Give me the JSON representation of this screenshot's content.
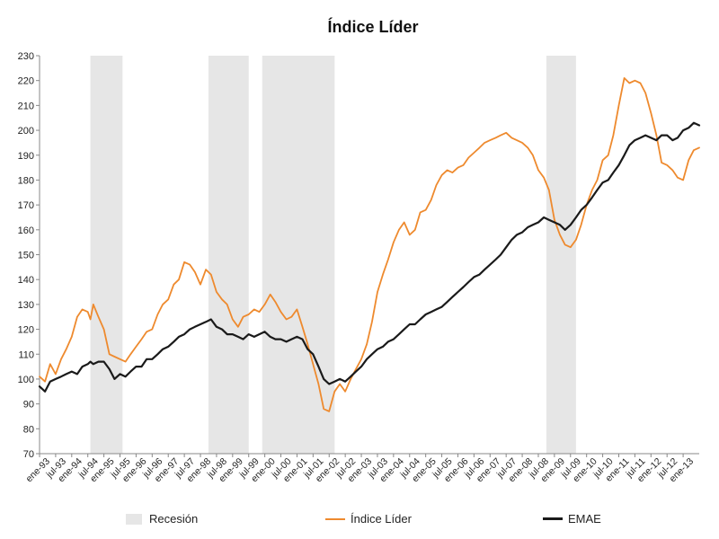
{
  "chart_data": {
    "type": "line",
    "title": "Índice Líder",
    "xlabel": "",
    "ylabel": "",
    "ylim": [
      70,
      230
    ],
    "yticks": [
      70,
      80,
      90,
      100,
      110,
      120,
      130,
      140,
      150,
      160,
      170,
      180,
      190,
      200,
      210,
      220,
      230
    ],
    "xlim": [
      1993.0,
      2013.5
    ],
    "xtick_labels": [
      "ene-93",
      "jul-93",
      "ene-94",
      "jul-94",
      "ene-95",
      "jul-95",
      "ene-96",
      "jul-96",
      "ene-97",
      "jul-97",
      "ene-98",
      "jul-98",
      "ene-99",
      "jul-99",
      "ene-00",
      "jul-00",
      "ene-01",
      "jul-01",
      "ene-02",
      "jul-02",
      "ene-03",
      "jul-03",
      "ene-04",
      "jul-04",
      "ene-05",
      "jul-05",
      "ene-06",
      "jul-06",
      "ene-07",
      "jul-07",
      "ene-08",
      "jul-08",
      "ene-09",
      "jul-09",
      "ene-10",
      "jul-10",
      "ene-11",
      "jul-11",
      "ene-12",
      "jul-12",
      "ene-13"
    ],
    "recessions": [
      {
        "start": 1994.58,
        "end": 1995.58
      },
      {
        "start": 1998.25,
        "end": 1999.5
      },
      {
        "start": 1999.92,
        "end": 2002.17
      },
      {
        "start": 2008.75,
        "end": 2009.67
      }
    ],
    "grid": false,
    "legend_position": "bottom",
    "series": [
      {
        "name": "Índice Líder",
        "color": "#ee8a2e",
        "x": [
          1993.0,
          1993.17,
          1993.33,
          1993.5,
          1993.67,
          1993.83,
          1994.0,
          1994.17,
          1994.33,
          1994.5,
          1994.58,
          1994.67,
          1994.83,
          1995.0,
          1995.17,
          1995.33,
          1995.5,
          1995.67,
          1995.83,
          1996.0,
          1996.17,
          1996.33,
          1996.5,
          1996.67,
          1996.83,
          1997.0,
          1997.17,
          1997.33,
          1997.5,
          1997.67,
          1997.83,
          1998.0,
          1998.17,
          1998.33,
          1998.5,
          1998.67,
          1998.83,
          1999.0,
          1999.17,
          1999.33,
          1999.5,
          1999.67,
          1999.83,
          2000.0,
          2000.17,
          2000.33,
          2000.5,
          2000.67,
          2000.83,
          2001.0,
          2001.17,
          2001.33,
          2001.5,
          2001.67,
          2001.83,
          2002.0,
          2002.17,
          2002.33,
          2002.5,
          2002.67,
          2002.83,
          2003.0,
          2003.17,
          2003.33,
          2003.5,
          2003.67,
          2003.83,
          2004.0,
          2004.17,
          2004.33,
          2004.5,
          2004.67,
          2004.83,
          2005.0,
          2005.17,
          2005.33,
          2005.5,
          2005.67,
          2005.83,
          2006.0,
          2006.17,
          2006.33,
          2006.5,
          2006.67,
          2006.83,
          2007.0,
          2007.17,
          2007.33,
          2007.5,
          2007.67,
          2007.83,
          2008.0,
          2008.17,
          2008.33,
          2008.5,
          2008.67,
          2008.83,
          2009.0,
          2009.17,
          2009.33,
          2009.5,
          2009.67,
          2009.83,
          2010.0,
          2010.17,
          2010.33,
          2010.5,
          2010.67,
          2010.83,
          2011.0,
          2011.17,
          2011.33,
          2011.5,
          2011.67,
          2011.83,
          2012.0,
          2012.17,
          2012.33,
          2012.5,
          2012.67,
          2012.83,
          2013.0,
          2013.17,
          2013.33,
          2013.5
        ],
        "values": [
          101,
          99,
          106,
          102,
          108,
          112,
          117,
          125,
          128,
          127,
          124,
          130,
          125,
          120,
          110,
          109,
          108,
          107,
          110,
          113,
          116,
          119,
          120,
          126,
          130,
          132,
          138,
          140,
          147,
          146,
          143,
          138,
          144,
          142,
          135,
          132,
          130,
          124,
          121,
          125,
          126,
          128,
          127,
          130,
          134,
          131,
          127,
          124,
          125,
          128,
          121,
          114,
          106,
          98,
          88,
          87,
          95,
          98,
          95,
          100,
          104,
          108,
          114,
          123,
          135,
          142,
          148,
          155,
          160,
          163,
          158,
          160,
          167,
          168,
          172,
          178,
          182,
          184,
          183,
          185,
          186,
          189,
          191,
          193,
          195,
          196,
          197,
          198,
          199,
          197,
          196,
          195,
          193,
          190,
          184,
          181,
          176,
          164,
          158,
          154,
          153,
          156,
          162,
          170,
          176,
          180,
          188,
          190,
          198,
          210,
          221,
          219,
          220,
          219,
          215,
          207,
          198,
          187,
          186,
          184,
          181,
          180,
          188,
          192,
          193
        ]
      },
      {
        "name": "EMAE",
        "color": "#1a1a1a",
        "x": [
          1993.0,
          1993.17,
          1993.33,
          1993.5,
          1993.67,
          1993.83,
          1994.0,
          1994.17,
          1994.33,
          1994.5,
          1994.58,
          1994.67,
          1994.83,
          1995.0,
          1995.17,
          1995.33,
          1995.5,
          1995.67,
          1995.83,
          1996.0,
          1996.17,
          1996.33,
          1996.5,
          1996.67,
          1996.83,
          1997.0,
          1997.17,
          1997.33,
          1997.5,
          1997.67,
          1997.83,
          1998.0,
          1998.17,
          1998.33,
          1998.5,
          1998.67,
          1998.83,
          1999.0,
          1999.17,
          1999.33,
          1999.5,
          1999.67,
          1999.83,
          2000.0,
          2000.17,
          2000.33,
          2000.5,
          2000.67,
          2000.83,
          2001.0,
          2001.17,
          2001.33,
          2001.5,
          2001.67,
          2001.83,
          2002.0,
          2002.17,
          2002.33,
          2002.5,
          2002.67,
          2002.83,
          2003.0,
          2003.17,
          2003.33,
          2003.5,
          2003.67,
          2003.83,
          2004.0,
          2004.17,
          2004.33,
          2004.5,
          2004.67,
          2004.83,
          2005.0,
          2005.17,
          2005.33,
          2005.5,
          2005.67,
          2005.83,
          2006.0,
          2006.17,
          2006.33,
          2006.5,
          2006.67,
          2006.83,
          2007.0,
          2007.17,
          2007.33,
          2007.5,
          2007.67,
          2007.83,
          2008.0,
          2008.17,
          2008.33,
          2008.5,
          2008.67,
          2008.83,
          2009.0,
          2009.17,
          2009.33,
          2009.5,
          2009.67,
          2009.83,
          2010.0,
          2010.17,
          2010.33,
          2010.5,
          2010.67,
          2010.83,
          2011.0,
          2011.17,
          2011.33,
          2011.5,
          2011.67,
          2011.83,
          2012.0,
          2012.17,
          2012.33,
          2012.5,
          2012.67,
          2012.83,
          2013.0,
          2013.17,
          2013.33,
          2013.5
        ],
        "values": [
          97,
          95,
          99,
          100,
          101,
          102,
          103,
          102,
          105,
          106,
          107,
          106,
          107,
          107,
          104,
          100,
          102,
          101,
          103,
          105,
          105,
          108,
          108,
          110,
          112,
          113,
          115,
          117,
          118,
          120,
          121,
          122,
          123,
          124,
          121,
          120,
          118,
          118,
          117,
          116,
          118,
          117,
          118,
          119,
          117,
          116,
          116,
          115,
          116,
          117,
          116,
          112,
          110,
          105,
          100,
          98,
          99,
          100,
          99,
          101,
          103,
          105,
          108,
          110,
          112,
          113,
          115,
          116,
          118,
          120,
          122,
          122,
          124,
          126,
          127,
          128,
          129,
          131,
          133,
          135,
          137,
          139,
          141,
          142,
          144,
          146,
          148,
          150,
          153,
          156,
          158,
          159,
          161,
          162,
          163,
          165,
          164,
          163,
          162,
          160,
          162,
          165,
          168,
          170,
          173,
          176,
          179,
          180,
          183,
          186,
          190,
          194,
          196,
          197,
          198,
          197,
          196,
          198,
          198,
          196,
          197,
          200,
          201,
          203,
          202
        ]
      }
    ],
    "legend": [
      {
        "label": "Recesión",
        "kind": "box"
      },
      {
        "label": "Índice Líder",
        "kind": "line",
        "color": "#ee8a2e"
      },
      {
        "label": "EMAE",
        "kind": "line",
        "color": "#1a1a1a"
      }
    ]
  }
}
